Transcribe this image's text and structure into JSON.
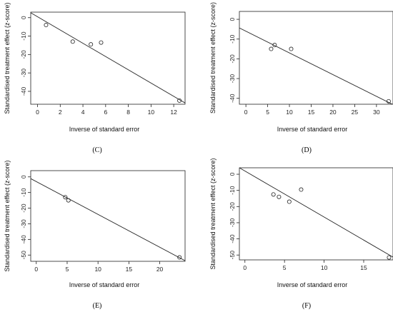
{
  "panels": [
    {
      "label": "(C)"
    },
    {
      "label": "(D)"
    },
    {
      "label": "(E)"
    },
    {
      "label": "(F)"
    }
  ],
  "chart_data": [
    {
      "type": "scatter",
      "xlabel": "Inverse of standard error",
      "ylabel": "Standardised treatment effect (z-score)",
      "xticks": [
        0,
        2,
        4,
        6,
        8,
        10,
        12
      ],
      "yticks": [
        0,
        -10,
        -20,
        -30,
        -40
      ],
      "xlim": [
        -0.6,
        13.0
      ],
      "ylim": [
        -47,
        3
      ],
      "points": [
        [
          0.75,
          -4.0
        ],
        [
          3.1,
          -13.0
        ],
        [
          4.7,
          -14.5
        ],
        [
          5.6,
          -13.5
        ],
        [
          12.5,
          -45.0
        ]
      ],
      "fit_line": {
        "intercept": 0.5,
        "slope": -3.6
      }
    },
    {
      "type": "scatter",
      "xlabel": "Inverse of standard error",
      "ylabel": "Standardised treatment effect (z-score)",
      "xticks": [
        0,
        5,
        10,
        15,
        20,
        25,
        30
      ],
      "yticks": [
        0,
        -10,
        -20,
        -30,
        -40
      ],
      "xlim": [
        -1.5,
        33.8
      ],
      "ylim": [
        -43,
        4
      ],
      "points": [
        [
          5.8,
          -15.0
        ],
        [
          6.6,
          -13.0
        ],
        [
          10.4,
          -15.0
        ],
        [
          32.8,
          -41.5
        ]
      ],
      "fit_line": {
        "intercept": -6.0,
        "slope": -1.1
      }
    },
    {
      "type": "scatter",
      "xlabel": "Inverse of standard error",
      "ylabel": "Standardised treatment effect (z-score)",
      "xticks": [
        0,
        5,
        10,
        15,
        20
      ],
      "yticks": [
        0,
        -10,
        -20,
        -30,
        -40,
        -50
      ],
      "xlim": [
        -0.9,
        24.1
      ],
      "ylim": [
        -54,
        4
      ],
      "points": [
        [
          4.7,
          -13.0
        ],
        [
          5.2,
          -15.0
        ],
        [
          23.2,
          -51.5
        ]
      ],
      "fit_line": {
        "intercept": -3.0,
        "slope": -2.1
      }
    },
    {
      "type": "scatter",
      "xlabel": "Inverse of standard error",
      "ylabel": "Standardised treatment effect (z-score)",
      "xticks": [
        0,
        5,
        10,
        15
      ],
      "yticks": [
        0,
        -10,
        -20,
        -30,
        -40,
        -50
      ],
      "xlim": [
        -0.7,
        18.7
      ],
      "ylim": [
        -53,
        4
      ],
      "points": [
        [
          3.6,
          -12.5
        ],
        [
          4.3,
          -14.0
        ],
        [
          5.6,
          -17.0
        ],
        [
          7.1,
          -9.5
        ],
        [
          18.2,
          -51.5
        ]
      ],
      "fit_line": {
        "intercept": 2.0,
        "slope": -2.85
      }
    }
  ]
}
